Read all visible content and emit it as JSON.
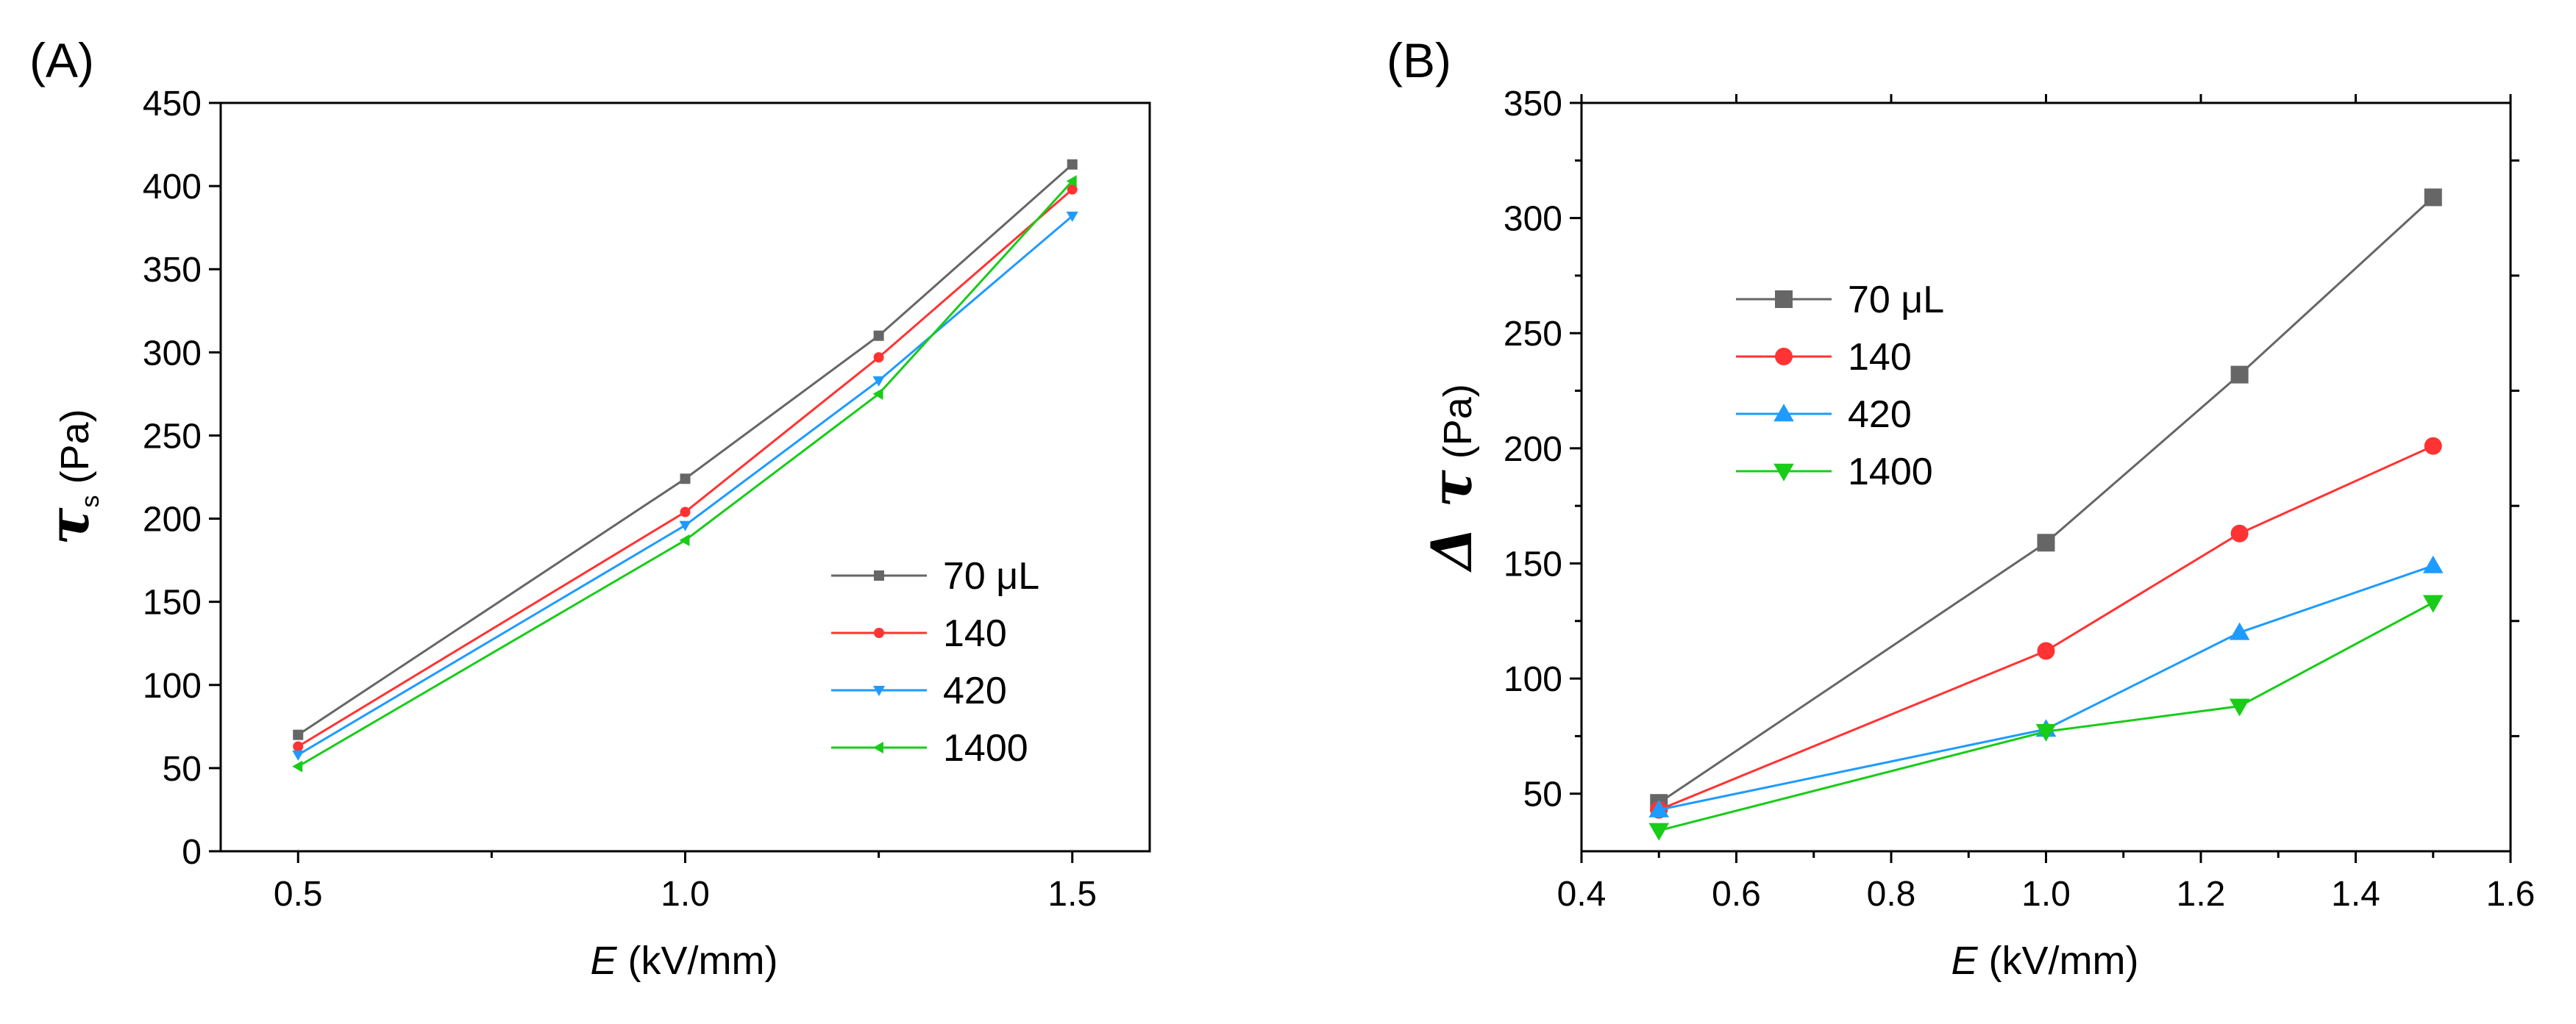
{
  "chart_data": [
    {
      "type": "line",
      "panel_label": "(A)",
      "title": "",
      "xlabel_var": "E",
      "xlabel_unit": " (kV/mm)",
      "ylabel_symbol": "τ",
      "ylabel_sub": "s",
      "ylabel_unit": " (Pa)",
      "xlim": [
        0.4,
        1.6
      ],
      "ylim": [
        0,
        450
      ],
      "xticks": [
        0.5,
        1.0,
        1.5
      ],
      "xtick_labels": [
        "0.5",
        "1.0",
        "1.5"
      ],
      "yticks": [
        0,
        50,
        100,
        150,
        200,
        250,
        300,
        350,
        400,
        450
      ],
      "ytick_labels": [
        "0",
        "50",
        "100",
        "150",
        "200",
        "250",
        "300",
        "350",
        "400",
        "450"
      ],
      "grid": false,
      "legend_position": "lower-right",
      "x": [
        0.5,
        1.0,
        1.25,
        1.5
      ],
      "series": [
        {
          "name": "70 μL",
          "values": [
            70,
            224,
            310,
            413
          ],
          "color": "#666666",
          "marker": "square"
        },
        {
          "name": "140",
          "values": [
            63,
            204,
            297,
            398
          ],
          "color": "#ff3333",
          "marker": "circle"
        },
        {
          "name": "420",
          "values": [
            58,
            196,
            283,
            382
          ],
          "color": "#1e9bff",
          "marker": "triangle-down"
        },
        {
          "name": "1400",
          "values": [
            51,
            187,
            275,
            403
          ],
          "color": "#18cc18",
          "marker": "triangle-left"
        }
      ]
    },
    {
      "type": "line",
      "panel_label": "(B)",
      "title": "",
      "xlabel_var": "E",
      "xlabel_unit": " (kV/mm)",
      "ylabel_symbol": "Δ τ",
      "ylabel_sub": "",
      "ylabel_unit": " (Pa)",
      "xlim": [
        0.4,
        1.6
      ],
      "ylim": [
        25,
        350
      ],
      "xticks": [
        0.4,
        0.6,
        0.8,
        1.0,
        1.2,
        1.4,
        1.6
      ],
      "xtick_labels": [
        "0.4",
        "0.6",
        "0.8",
        "1.0",
        "1.2",
        "1.4",
        "1.6"
      ],
      "yticks": [
        50,
        100,
        150,
        200,
        250,
        300,
        350
      ],
      "ytick_labels": [
        "50",
        "100",
        "150",
        "200",
        "250",
        "300",
        "350"
      ],
      "grid": false,
      "legend_position": "upper-left",
      "x": [
        0.5,
        1.0,
        1.25,
        1.5
      ],
      "series": [
        {
          "name": "70 μL",
          "values": [
            46,
            159,
            232,
            309
          ],
          "color": "#666666",
          "marker": "square"
        },
        {
          "name": "140",
          "values": [
            43,
            112,
            163,
            201
          ],
          "color": "#ff3333",
          "marker": "circle"
        },
        {
          "name": "420",
          "values": [
            43,
            78,
            120,
            149
          ],
          "color": "#1e9bff",
          "marker": "triangle-up"
        },
        {
          "name": "1400",
          "values": [
            34,
            77,
            88,
            133
          ],
          "color": "#18cc18",
          "marker": "triangle-down"
        }
      ]
    }
  ]
}
